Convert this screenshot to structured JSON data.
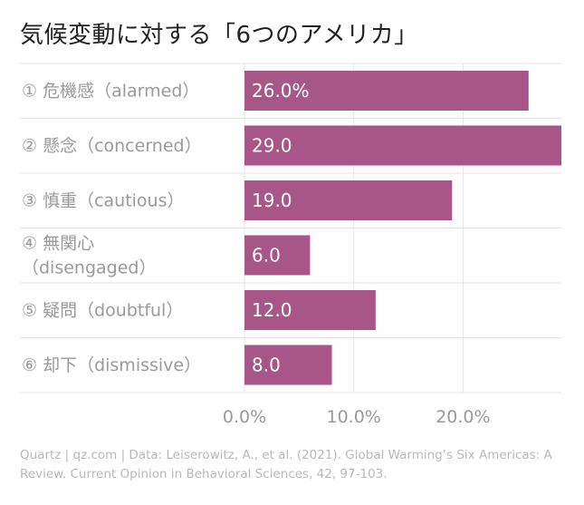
{
  "title": "気候変動に対する「6つのアメリカ」",
  "source": "Quartz | qz.com | Data: Leiserowitz, A., et al. (2021). Global Warming’s Six Americas: A Review. Current Opinion in Behavioral Sciences, 42, 97-103.",
  "colors": {
    "bar": "#a85587",
    "grid": "#e5e5e5",
    "label": "#9a9a9a",
    "value": "#ffffff"
  },
  "chart_data": {
    "type": "bar",
    "orientation": "horizontal",
    "title": "気候変動に対する「6つのアメリカ」",
    "categories": [
      [
        "① 危機感（alarmed）"
      ],
      [
        "② 懸念（concerned）"
      ],
      [
        "③ 慎重（cautious）"
      ],
      [
        "④ 無関心",
        "（disengaged）"
      ],
      [
        "⑤ 疑問（doubtful）"
      ],
      [
        "⑥ 却下（dismissive）"
      ]
    ],
    "values": [
      26.0,
      29.0,
      19.0,
      6.0,
      12.0,
      8.0
    ],
    "value_labels": [
      "26.0%",
      "29.0",
      "19.0",
      "6.0",
      "12.0",
      "8.0"
    ],
    "xlim": [
      0,
      29
    ],
    "xticks": [
      0,
      10,
      20
    ],
    "xtick_labels": [
      "0.0%",
      "10.0%",
      "20.0%"
    ],
    "xlabel": "",
    "ylabel": "",
    "grid": true
  }
}
